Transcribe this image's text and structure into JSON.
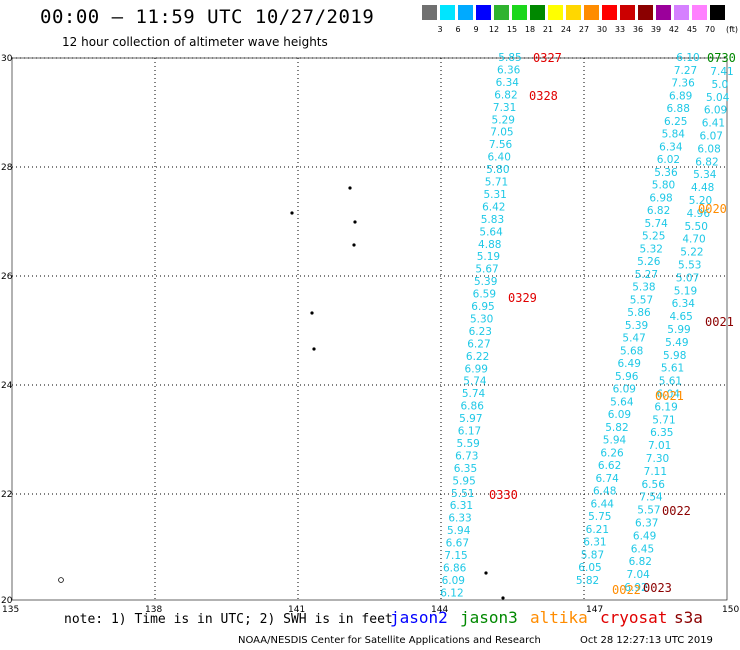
{
  "header": {
    "title": "00:00 — 11:59 UTC 10/27/2019",
    "subtitle": "12 hour collection of altimeter wave heights"
  },
  "colorbar": {
    "labels": [
      "3",
      "6",
      "9",
      "12",
      "15",
      "18",
      "21",
      "24",
      "27",
      "30",
      "33",
      "36",
      "39",
      "42",
      "45",
      "70"
    ],
    "unit": "(ft)",
    "colors": [
      "#707070",
      "#00e5ff",
      "#00aaff",
      "#0000ff",
      "#2fb32f",
      "#1cd71c",
      "#008800",
      "#ffff00",
      "#ffd700",
      "#ff8c00",
      "#ff0000",
      "#cc0000",
      "#8b0000",
      "#9b009b",
      "#d580ff",
      "#ff80ff",
      "#000000"
    ]
  },
  "map": {
    "lon_labels": [
      "135",
      "138",
      "141",
      "144",
      "147",
      "150"
    ],
    "lat_labels": [
      "30",
      "28",
      "26",
      "24",
      "22",
      "20"
    ],
    "track_a_color": "#1ec8e6",
    "track_b_color": "#1ec8e6",
    "track_a": [
      "5.85",
      "6.36",
      "6.34",
      "6.82",
      "7.31",
      "5.29",
      "7.05",
      "7.56",
      "6.40",
      "5.80",
      "5.71",
      "5.31",
      "6.42",
      "5.83",
      "5.64",
      "4.88",
      "5.19",
      "5.67",
      "5.39",
      "6.59",
      "6.95",
      "5.30",
      "6.23",
      "6.27",
      "6.22",
      "6.99",
      "5.74",
      "5.74",
      "6.86",
      "5.97",
      "6.17",
      "5.59",
      "6.73",
      "6.35",
      "5.95",
      "5.51",
      "6.31",
      "6.33",
      "5.94",
      "6.67",
      "7.15",
      "6.86",
      "6.09",
      "6.12"
    ],
    "track_b": [
      "6.10",
      "7.27",
      "7.36",
      "6.89",
      "6.88",
      "6.25",
      "5.84",
      "6.34",
      "6.02",
      "5.36",
      "5.80",
      "6.98",
      "6.82",
      "5.74",
      "5.25",
      "5.32",
      "5.26",
      "5.27",
      "5.38",
      "5.57",
      "5.86",
      "5.39",
      "5.47",
      "5.68",
      "6.49",
      "5.96",
      "6.09",
      "5.64",
      "6.09",
      "5.82",
      "5.94",
      "6.26",
      "6.62",
      "6.74",
      "6.48",
      "6.44",
      "5.75",
      "6.21",
      "6.31",
      "5.87",
      "6.05",
      "5.82"
    ],
    "track_c": [
      "7.41",
      "5.0",
      "5.04",
      "6.09",
      "6.41",
      "6.07",
      "6.08",
      "6.82",
      "5.34",
      "4.48",
      "5.20",
      "4.96",
      "5.50",
      "4.70",
      "5.22",
      "5.53",
      "5.07",
      "5.19",
      "6.34",
      "4.65",
      "5.99",
      "5.49",
      "5.98",
      "5.61",
      "5.61",
      "6.04",
      "6.19",
      "5.71",
      "6.35",
      "7.01",
      "7.30",
      "7.11",
      "6.56",
      "7.54",
      "5.57",
      "6.37",
      "6.49",
      "6.45",
      "6.82",
      "7.04",
      "6.92"
    ],
    "time_labels": [
      {
        "text": "0327",
        "color": "#e00000"
      },
      {
        "text": "0328",
        "color": "#e00000"
      },
      {
        "text": "0329",
        "color": "#e00000"
      },
      {
        "text": "0330",
        "color": "#e00000"
      },
      {
        "text": "0020",
        "color": "#ff8c00"
      },
      {
        "text": "0021",
        "color": "#8b0000"
      },
      {
        "text": "0021",
        "color": "#ff8c00"
      },
      {
        "text": "0022",
        "color": "#8b0000"
      },
      {
        "text": "0023",
        "color": "#8b0000"
      },
      {
        "text": "0022",
        "color": "#ff8c00"
      },
      {
        "text": "0730",
        "color": "#008800"
      }
    ]
  },
  "footer": {
    "note": "note: 1) Time is in UTC; 2) SWH is in feet",
    "legend": [
      {
        "label": "jason2",
        "color": "#0000ff"
      },
      {
        "label": "jason3",
        "color": "#008800"
      },
      {
        "label": "altika",
        "color": "#ff8c00"
      },
      {
        "label": "cryosat",
        "color": "#e00000"
      },
      {
        "label": "s3a",
        "color": "#8b0000"
      }
    ],
    "credit": "NOAA/NESDIS Center for Satellite Applications and Research",
    "timestamp": "Oct 28 12:27:13 UTC 2019"
  }
}
